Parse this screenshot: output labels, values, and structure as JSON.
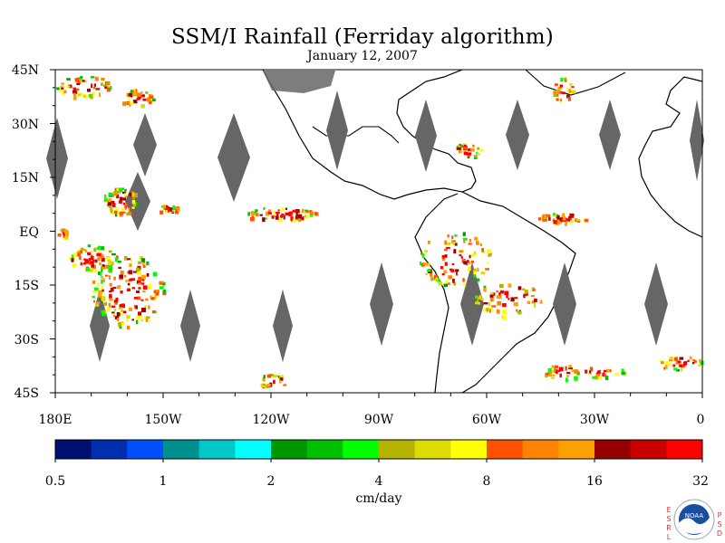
{
  "header": {
    "title": "SSM/I Rainfall (Ferriday algorithm)",
    "date": "January 12, 2007"
  },
  "map": {
    "lat_labels": [
      "45N",
      "30N",
      "15N",
      "EQ",
      "15S",
      "30S",
      "45S"
    ],
    "lat_values": [
      45,
      30,
      15,
      0,
      -15,
      -30,
      -45
    ],
    "lon_labels": [
      "180E",
      "150W",
      "120W",
      "90W",
      "60W",
      "30W",
      "0"
    ],
    "lon_values": [
      -180,
      -150,
      -120,
      -90,
      -60,
      -30,
      0
    ],
    "lon_range": [
      -180,
      0
    ],
    "lat_range": [
      -45,
      45
    ],
    "missing_swath_color": "#666666",
    "coast_color": "#000000"
  },
  "colorbar": {
    "unit": "cm/day",
    "tick_labels": [
      "0.5",
      "1",
      "2",
      "4",
      "8",
      "16",
      "32"
    ],
    "colors": [
      "#001070",
      "#0030b0",
      "#0050ff",
      "#009090",
      "#00c8c8",
      "#00ffff",
      "#009600",
      "#00c000",
      "#00ff00",
      "#b4b400",
      "#dcdc00",
      "#ffff00",
      "#ff5000",
      "#ff8200",
      "#ffa000",
      "#960000",
      "#c80000",
      "#ff0000"
    ]
  },
  "logo": {
    "text": "NOAA",
    "left_letters": "ESRL",
    "right_letters": "PSD"
  }
}
